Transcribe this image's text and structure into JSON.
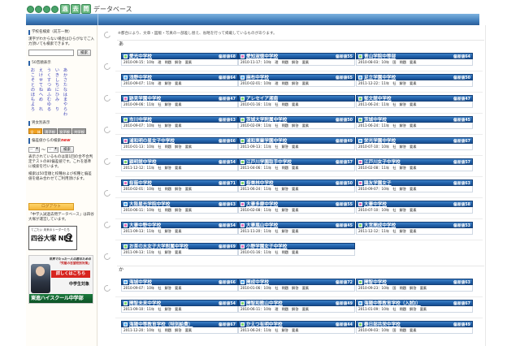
{
  "header": {
    "logo_bubbles": [
      "ち",
      "ゅ",
      "う",
      "じ"
    ],
    "logo_big": [
      "過",
      "去",
      "問"
    ],
    "title": "データベース"
  },
  "colors": {
    "topbar": "#3e7bb9",
    "card_header": "#1f5ea7",
    "logout": "#f3b63a",
    "kana_link": "#3f45b8",
    "icon_green": "#7bd76b",
    "icon_pink": "#e36fb9",
    "icon_blue": "#5fb5f5"
  },
  "sidebar": {
    "search_heading": "学校名検索（前方一致）",
    "search_help": "漢字がわからない場合はひらがなでご入力頂いても検索できます。",
    "search_input_value": "",
    "search_button": "検索",
    "kana_heading": "50音順表示",
    "kana_columns": [
      [
        "あ",
        "か",
        "さ",
        "た",
        "な",
        "は",
        "ま",
        "や",
        "ら",
        "わ"
      ],
      [
        "い",
        "き",
        "し",
        "ち",
        "に",
        "ひ",
        "み",
        "",
        "り",
        ""
      ],
      [
        "う",
        "く",
        "す",
        "つ",
        "ぬ",
        "ふ",
        "む",
        "ゆ",
        "る",
        ""
      ],
      [
        "え",
        "け",
        "せ",
        "て",
        "ね",
        "へ",
        "め",
        "",
        "れ",
        ""
      ],
      [
        "お",
        "こ",
        "そ",
        "と",
        "の",
        "ほ",
        "も",
        "よ",
        "ろ",
        ""
      ]
    ],
    "gender_heading": "男女別表示",
    "gender_filters": [
      {
        "label": "全　体",
        "active": true
      },
      {
        "label": "男子校",
        "active": false
      },
      {
        "label": "女子校",
        "active": false
      },
      {
        "label": "共学校",
        "active": false
      }
    ],
    "score_heading": "偏差値からの検索",
    "score_new": "new",
    "score_from": "--",
    "score_tilde": "〜",
    "score_to": "--",
    "score_button": "検索",
    "score_note_1": "表示されているものは第1回の合不合判定テストの80偏差値です。これを基準に検索を行います。",
    "score_note_2": "検索は50音順と校種および校種と偏差値を組み合わせてご利用頂けます。",
    "logout_button": "ログアウト",
    "operator_note": "「中学入試過去問データベース」は四谷大塚が運営しています。",
    "banner_yotsuya": {
      "tagline": "てごたい 未来のリーダーたち",
      "name": "四谷大塚 NET"
    },
    "banner_toshin": {
      "line1": "世界でたった一人の君のための",
      "line2": "「究極の志望校別対策」",
      "cta": "詳しくはこちら",
      "target": "中学生対象",
      "brand": "東進ハイスクール中学部"
    }
  },
  "main": {
    "notice": "※都合により、文章・図版・写真の一部差し替え、省略を行って掲載しているものがあります。",
    "sections": [
      {
        "kana": "あ",
        "schools": [
          {
            "name": "愛光中学校",
            "score": "偏差値68",
            "icon": "green",
            "meta": "2010-09-15：10年　理　問題　解答　要素"
          },
          {
            "name": "愛知淑徳中学校",
            "score": "偏差値55",
            "icon": "pink",
            "meta": "2010-11-17：10年　理　問題　解答　要素"
          },
          {
            "name": "青山学院中等部",
            "score": "偏差値64",
            "icon": "green",
            "meta": "2010-08-03：10年　国　問題　要素"
          },
          {
            "name": "浅野中学校",
            "score": "偏差値64",
            "icon": "blue",
            "meta": "2010-09-07：11年　理　解答　要素"
          },
          {
            "name": "麻布中学校",
            "score": "偏差値65",
            "icon": "blue",
            "meta": "2010-02-01：10年　理　問題　解答　要素"
          },
          {
            "name": "足立学園中学校",
            "score": "偏差値50",
            "icon": "blue",
            "meta": "2011-12-22：11年　社　解答　要素"
          },
          {
            "name": "跡見学園中学校",
            "score": "偏差値47",
            "icon": "pink",
            "meta": "2010-09-06：11年　社　解答　要素"
          },
          {
            "name": "アレセイア湘南",
            "score": "",
            "icon": "green",
            "meta": "2010-01-16：11年　社　問題　要素"
          },
          {
            "name": "郁文館中学校",
            "score": "偏差値47",
            "icon": "green",
            "meta": "2011-06-24：11年　社　解答　要素"
          },
          {
            "name": "市川中学校",
            "score": "偏差値63",
            "icon": "green",
            "meta": "2010-09-07：10年　社　解答　要素"
          },
          {
            "name": "茨城大学附属中学校",
            "score": "偏差値50",
            "icon": "green",
            "meta": "2010-02-09：11年　社　問題　解答　要素"
          },
          {
            "name": "茨城中学校",
            "score": "偏差値45",
            "icon": "green",
            "meta": "2011-06-24：11年　社　解答　要素"
          },
          {
            "name": "浦和明の星女子中学校",
            "score": "偏差値66",
            "icon": "pink",
            "meta": "2010-01-13：10年　社　問題　解答　要素"
          },
          {
            "name": "浦和実業学園中学校",
            "score": "偏差値49",
            "icon": "green",
            "meta": "2011-09-13：11年　社　解答　要素"
          },
          {
            "name": "栄光学園中学校",
            "score": "偏差値67",
            "icon": "blue",
            "meta": "2010-07-10：10年　社　解答　要素"
          },
          {
            "name": "穎明館中学校",
            "score": "偏差値54",
            "icon": "green",
            "meta": "2011-12-12：11年　社　解答　要素"
          },
          {
            "name": "江戸川学園取手中学校",
            "score": "偏差値57",
            "icon": "green",
            "meta": "2011-04-06：11年　社　問題　要素"
          },
          {
            "name": "江戸川女子中学校",
            "score": "偏差値57",
            "icon": "pink",
            "meta": "2010-02-08：11年　社　解答　要素"
          },
          {
            "name": "桜蔭中学校",
            "score": "偏差値71",
            "icon": "pink",
            "meta": "2010-02-01：10年　社　問題　解答　要素"
          },
          {
            "name": "桜美林中学校",
            "score": "偏差値50",
            "icon": "green",
            "meta": "2011-06-24：11年　社　解答　要素"
          },
          {
            "name": "鴎友学園女子",
            "score": "偏差値63",
            "icon": "pink",
            "meta": "2010-09-07：10年　社　解答　要素"
          },
          {
            "name": "大阪星光学院中学校",
            "score": "偏差値63",
            "icon": "blue",
            "meta": "2010-06-11：10年　社　問題　解答　要素"
          },
          {
            "name": "大妻多摩中学校",
            "score": "偏差値55",
            "icon": "pink",
            "meta": "2010-02-08：11年　社　解答　要素"
          },
          {
            "name": "大妻中学校",
            "score": "偏差値58",
            "icon": "pink",
            "meta": "2010-07-10：10年　社　解答　要素"
          },
          {
            "name": "大妻中野中学校",
            "score": "偏差値54",
            "icon": "pink",
            "meta": "2011-09-13：11年　社　解答　要素"
          },
          {
            "name": "大妻嵐山中学校",
            "score": "偏差値45",
            "icon": "pink",
            "meta": "2011-11-20：11年　社　解答　要素"
          },
          {
            "name": "大宮開成中学校",
            "score": "偏差値53",
            "icon": "green",
            "meta": "2011-12-12：11年　社　解答　要素"
          },
          {
            "name": "お茶の水女子大学附属中学校",
            "score": "偏差値69",
            "icon": "green",
            "meta": "2011-09-13：11年　社　解答　要素"
          },
          {
            "name": "小野学園女子中学校",
            "score": "",
            "icon": "pink",
            "meta": "2010-01-16：11年　社　問題　要素"
          }
        ]
      },
      {
        "kana": "か",
        "schools": [
          {
            "name": "海城中学校",
            "score": "偏差値66",
            "icon": "blue",
            "meta": "2010-09-07：10年　社　解答　要素"
          },
          {
            "name": "開成中学校",
            "score": "偏差値72",
            "icon": "blue",
            "meta": "2010-01-06：10年　社　問題　解答　要素"
          },
          {
            "name": "開智中学校",
            "score": "偏差値63",
            "icon": "green",
            "meta": "2010-09-23：10年　国　問題　解答　要素"
          },
          {
            "name": "開智未来中学校",
            "score": "偏差値54",
            "icon": "green",
            "meta": "2011-09-10：11年　社　解答　要素"
          },
          {
            "name": "開智和歌山中学校",
            "score": "偏差値49",
            "icon": "green",
            "meta": "2010-06-11：10年　理　問題　解答　要素"
          },
          {
            "name": "海陽中等教育学校（入試Ⅰ）",
            "score": "偏差値67",
            "icon": "blue",
            "meta": "2011-01-09：10年　社　問題　解答　要素"
          },
          {
            "name": "海陽中等教育学校（特別給費）",
            "score": "偏差値67",
            "icon": "blue",
            "meta": "2011-12-20：10年　社　問題　解答　要素"
          },
          {
            "name": "かえつ有明中学校",
            "score": "偏差値44",
            "icon": "green",
            "meta": "2011-06-24：11年　社　解答　要素"
          },
          {
            "name": "春日部共栄中学校",
            "score": "偏差値49",
            "icon": "green",
            "meta": "2010-09-03：10年　国　問題　要素"
          }
        ]
      }
    ]
  }
}
